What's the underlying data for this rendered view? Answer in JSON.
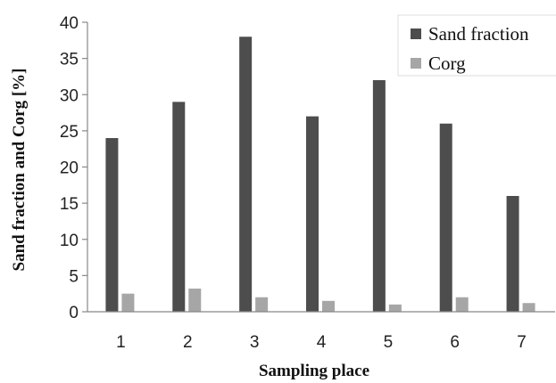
{
  "chart_data": {
    "type": "bar",
    "title": "",
    "xlabel": "Sampling place",
    "ylabel": "Sand fraction and Corg [%]",
    "categories": [
      "1",
      "2",
      "3",
      "4",
      "5",
      "6",
      "7"
    ],
    "ylim": [
      0,
      40
    ],
    "yticks": [
      0,
      5,
      10,
      15,
      20,
      25,
      30,
      35,
      40
    ],
    "grid": false,
    "legend": "top-right",
    "series": [
      {
        "name": "Sand fraction",
        "color": "#4d4d4d",
        "values": [
          24,
          29,
          38,
          27,
          32,
          26,
          16
        ]
      },
      {
        "name": "Corg",
        "color": "#a6a6a6",
        "values": [
          2.5,
          3.2,
          2.0,
          1.5,
          1.0,
          2.0,
          1.2
        ]
      }
    ]
  }
}
